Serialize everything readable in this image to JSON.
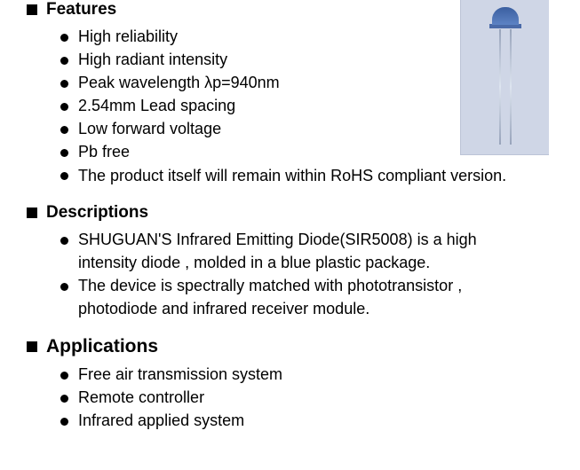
{
  "sections": {
    "features": {
      "heading": "Features",
      "items": [
        "High reliability",
        "High radiant intensity",
        "Peak wavelength  λp=940nm",
        "2.54mm Lead spacing",
        "Low forward voltage",
        "Pb free",
        "The product itself will remain within RoHS compliant version."
      ]
    },
    "descriptions": {
      "heading": "Descriptions",
      "items": [
        "SHUGUAN'S Infrared Emitting Diode(SIR5008) is a high intensity diode , molded in a blue plastic package.",
        "The device is spectrally matched with phototransistor , photodiode and infrared receiver module."
      ]
    },
    "applications": {
      "heading": "Applications",
      "items": [
        "Free air transmission system",
        "Remote controller",
        "Infrared applied system"
      ]
    }
  },
  "image": {
    "label": "infrared-led-component",
    "background_color": "#cfd6e6",
    "led_color": "#4a6aa8"
  }
}
